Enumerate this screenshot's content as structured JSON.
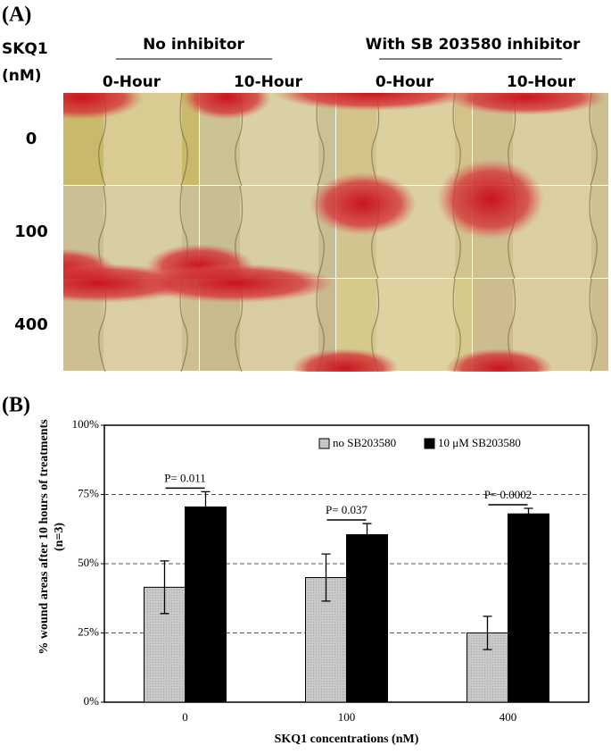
{
  "panel_a": {
    "label": "(A)",
    "row_header": [
      "SKQ1",
      "(nM)"
    ],
    "groups": [
      "No inhibitor",
      "With SB 203580 inhibitor"
    ],
    "columns": [
      "0-Hour",
      "10-Hour",
      "0-Hour",
      "10-Hour"
    ],
    "rows": [
      "0",
      "100",
      "400"
    ]
  },
  "chart_data": {
    "type": "bar",
    "label": "(B)",
    "x_label": "SKQ1 concentrations  (nM)",
    "y_label": [
      "% wound areas after 10 hours  of treatments",
      "(n=3)"
    ],
    "categories": [
      "0",
      "100",
      "400"
    ],
    "series": [
      {
        "name": "no SB203580",
        "color": "#c8c8c8",
        "values": [
          41.5,
          45,
          25
        ],
        "errors": [
          9.5,
          8.5,
          6
        ]
      },
      {
        "name": "10 μM SB203580",
        "color": "#000000",
        "values": [
          70.5,
          60.5,
          68
        ],
        "errors": [
          5.5,
          4,
          2
        ]
      }
    ],
    "annotations": [
      "P= 0.011",
      "P= 0.037",
      "P= 0.0002"
    ],
    "ylim": [
      0,
      100
    ],
    "yticks": [
      {
        "value": 0,
        "label": "0%"
      },
      {
        "value": 25,
        "label": "25%"
      },
      {
        "value": 50,
        "label": "50%"
      },
      {
        "value": 75,
        "label": "75%"
      },
      {
        "value": 100,
        "label": "100%"
      }
    ],
    "grid": true,
    "legend": "top-right"
  }
}
